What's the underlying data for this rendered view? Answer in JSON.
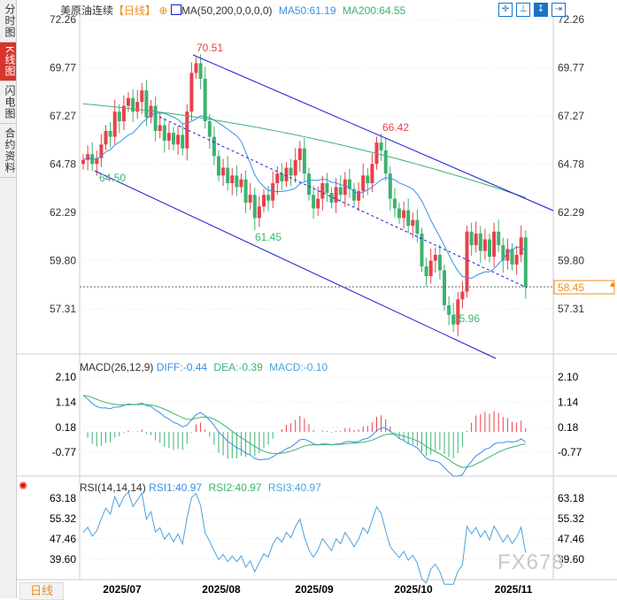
{
  "sidebar": {
    "tabs": [
      {
        "label": "分时图"
      },
      {
        "label": "K线图",
        "active": true
      },
      {
        "label": "闪电图"
      },
      {
        "label": "合约资料"
      }
    ]
  },
  "header": {
    "instrument": "美原油连续",
    "period": "【日线】",
    "indicator": "MA(50,200,0,0,0,0)",
    "ma50": "MA50:61.19",
    "ma200": "MA200:64.55"
  },
  "toolbar": [
    "crosshair-icon",
    "range-icon",
    "draw-icon",
    "exit-icon"
  ],
  "price_axis": {
    "ticks": [
      "72.26",
      "69.77",
      "67.27",
      "64.78",
      "62.29",
      "59.80",
      "57.31"
    ],
    "current": "58.45"
  },
  "annotations": {
    "high1": "70.51",
    "high2": "66.42",
    "low1": "64.50",
    "low2": "61.45",
    "low3": "55.96"
  },
  "macd": {
    "title": "MACD(26,12,9)",
    "diff": "DIFF:-0.44",
    "dea": "DEA:-0.39",
    "macd": "MACD:-0.10",
    "ticks": [
      "2.10",
      "1.14",
      "0.18",
      "-0.77"
    ]
  },
  "rsi": {
    "title": "RSI(14,14,14)",
    "rsi1": "RSI1:40.97",
    "rsi2": "RSI2:40.97",
    "rsi3": "RSI3:40.97",
    "ticks": [
      "63.18",
      "55.32",
      "47.46",
      "39.60"
    ]
  },
  "dates": [
    "2025/07",
    "2025/08",
    "2025/09",
    "2025/10",
    "2025/11"
  ],
  "period_button": "日线",
  "watermark": "FX678",
  "colors": {
    "up": "#e8414b",
    "down": "#3cb371",
    "ma50": "#3a8ee6",
    "ma200": "#3cb371",
    "channel": "#1a1ad6",
    "current": "#f08c1a"
  },
  "chart_data": {
    "type": "candlestick",
    "closes": [
      65.0,
      65.3,
      64.8,
      65.1,
      65.8,
      66.5,
      66.2,
      67.5,
      67.0,
      67.8,
      68.2,
      67.5,
      68.0,
      68.6,
      67.2,
      67.8,
      66.5,
      66.8,
      66.0,
      66.4,
      65.8,
      66.3,
      65.6,
      67.5,
      69.5,
      70.0,
      69.2,
      67.0,
      66.2,
      65.2,
      64.2,
      64.6,
      63.8,
      64.2,
      63.6,
      64.0,
      62.8,
      63.2,
      62.0,
      62.6,
      63.2,
      62.9,
      63.8,
      64.3,
      63.9,
      64.6,
      64.2,
      65.0,
      65.6,
      64.3,
      63.2,
      62.5,
      63.0,
      63.8,
      63.3,
      62.8,
      63.6,
      63.2,
      64.0,
      63.5,
      62.9,
      63.4,
      64.2,
      63.8,
      64.8,
      65.9,
      65.5,
      64.3,
      63.0,
      62.5,
      62.0,
      62.4,
      61.6,
      61.9,
      61.2,
      59.5,
      59.0,
      59.8,
      60.1,
      59.3,
      57.5,
      57.0,
      56.5,
      57.8,
      58.2,
      61.3,
      60.6,
      61.2,
      60.3,
      60.9,
      60.0,
      61.3,
      60.6,
      59.8,
      60.4,
      59.6,
      60.1,
      61.0,
      58.45
    ],
    "ylim": [
      57.31,
      72.26
    ]
  }
}
